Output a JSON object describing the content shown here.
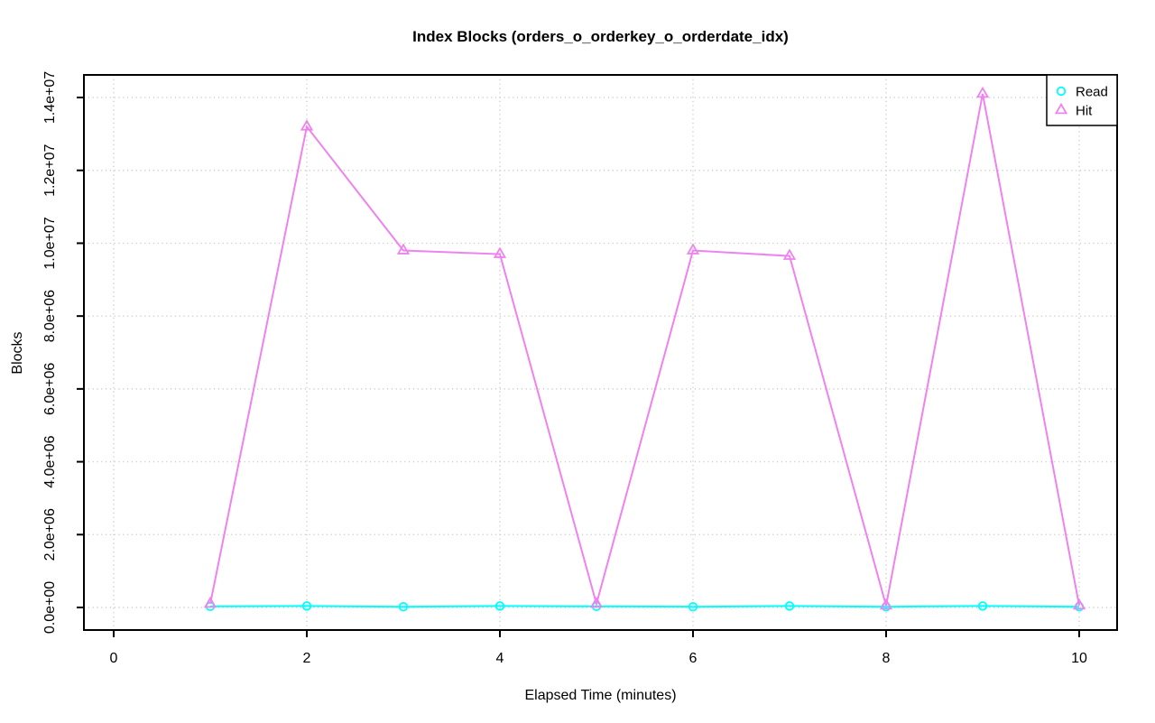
{
  "chart_data": {
    "type": "line",
    "title": "Index Blocks (orders_o_orderkey_o_orderdate_idx)",
    "xlabel": "Elapsed Time (minutes)",
    "ylabel": "Blocks",
    "x": [
      1,
      2,
      3,
      4,
      5,
      6,
      7,
      8,
      9,
      10
    ],
    "series": [
      {
        "name": "Read",
        "marker": "circle",
        "color": "#00FFFF",
        "values": [
          30000,
          40000,
          20000,
          40000,
          30000,
          20000,
          40000,
          20000,
          40000,
          20000
        ]
      },
      {
        "name": "Hit",
        "marker": "triangle",
        "color": "#EE82EE",
        "values": [
          100000,
          13200000,
          9800000,
          9700000,
          100000,
          9800000,
          9650000,
          50000,
          14100000,
          50000
        ]
      }
    ],
    "xticks": {
      "values": [
        0,
        2,
        4,
        6,
        8,
        10
      ],
      "labels": [
        "0",
        "2",
        "4",
        "6",
        "8",
        "10"
      ]
    },
    "yticks": {
      "values": [
        0,
        2000000,
        4000000,
        6000000,
        8000000,
        10000000,
        12000000,
        14000000
      ],
      "labels": [
        "0.0e+00",
        "2.0e+06",
        "4.0e+06",
        "6.0e+06",
        "8.0e+06",
        "1.0e+07",
        "1.2e+07",
        "1.4e+07"
      ]
    },
    "xlim": [
      -0.31,
      10.39
    ],
    "ylim": [
      -560000,
      14760000
    ],
    "grid": {
      "show": true,
      "style": "dotted",
      "color": "#CCCCCC"
    },
    "axis_color": "#000000",
    "background": "#FFFFFF",
    "legend": {
      "position": "top-right",
      "entries": [
        {
          "label": "Read"
        },
        {
          "label": "Hit"
        }
      ]
    }
  }
}
